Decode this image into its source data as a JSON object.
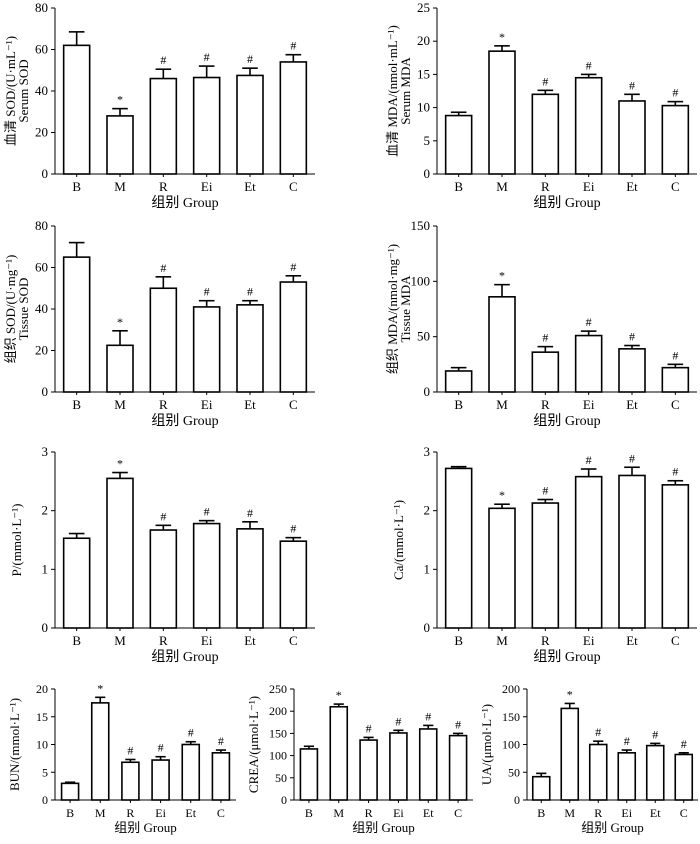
{
  "figure": {
    "categories": [
      "B",
      "M",
      "R",
      "Ei",
      "Et",
      "C"
    ],
    "xlabel": "组别 Group",
    "mark_star": "*",
    "mark_hash": "#"
  },
  "chart_data": [
    {
      "type": "bar",
      "id": "serum-sod",
      "ylabel_cn": "血清 SOD/(U·mL⁻¹)",
      "ylabel_en": "Serum SOD",
      "ylim": [
        0,
        80
      ],
      "yticks": [
        0,
        20,
        40,
        60,
        80
      ],
      "values": [
        62,
        28,
        46,
        46.5,
        47.5,
        54
      ],
      "errors": [
        6.5,
        3.5,
        4.5,
        5.5,
        3.5,
        3.5
      ],
      "marks": [
        "",
        "*",
        "#",
        "#",
        "#",
        "#"
      ]
    },
    {
      "type": "bar",
      "id": "serum-mda",
      "ylabel_cn": "血清 MDA/(nmol·mL⁻¹)",
      "ylabel_en": "Serum MDA",
      "ylim": [
        0,
        25
      ],
      "yticks": [
        0,
        5,
        10,
        15,
        20,
        25
      ],
      "values": [
        8.8,
        18.5,
        12,
        14.5,
        11,
        10.3
      ],
      "errors": [
        0.5,
        0.8,
        0.6,
        0.5,
        1,
        0.6
      ],
      "marks": [
        "",
        "*",
        "#",
        "#",
        "#",
        "#"
      ]
    },
    {
      "type": "bar",
      "id": "tissue-sod",
      "ylabel_cn": "组织 SOD/(U·mg⁻¹)",
      "ylabel_en": "Tissue SOD",
      "ylim": [
        0,
        80
      ],
      "yticks": [
        0,
        20,
        40,
        60,
        80
      ],
      "values": [
        65,
        22.5,
        50,
        41,
        42,
        53
      ],
      "errors": [
        7,
        7,
        5.5,
        3,
        2,
        3
      ],
      "marks": [
        "",
        "*",
        "#",
        "#",
        "#",
        "#"
      ]
    },
    {
      "type": "bar",
      "id": "tissue-mda",
      "ylabel_cn": "组织 MDA/(nmol·mg⁻¹)",
      "ylabel_en": "Tissue MDA",
      "ylim": [
        0,
        150
      ],
      "yticks": [
        0,
        50,
        100,
        150
      ],
      "values": [
        19,
        86,
        36,
        51,
        39,
        22
      ],
      "errors": [
        3,
        11,
        5,
        4,
        3,
        3
      ],
      "marks": [
        "",
        "*",
        "#",
        "#",
        "#",
        "#"
      ]
    },
    {
      "type": "bar",
      "id": "phosphorus",
      "ylabel": "P/(mmol·L⁻¹)",
      "ylim": [
        0,
        3
      ],
      "yticks": [
        0,
        1,
        2,
        3
      ],
      "values": [
        1.53,
        2.55,
        1.67,
        1.78,
        1.69,
        1.48
      ],
      "errors": [
        0.08,
        0.1,
        0.08,
        0.05,
        0.12,
        0.06
      ],
      "marks": [
        "",
        "*",
        "#",
        "#",
        "#",
        "#"
      ]
    },
    {
      "type": "bar",
      "id": "calcium",
      "ylabel": "Ca/(mmol·L⁻¹)",
      "ylim": [
        0,
        3
      ],
      "yticks": [
        0,
        1,
        2,
        3
      ],
      "values": [
        2.72,
        2.04,
        2.13,
        2.58,
        2.6,
        2.44
      ],
      "errors": [
        0.03,
        0.07,
        0.06,
        0.13,
        0.14,
        0.07
      ],
      "marks": [
        "",
        "*",
        "#",
        "#",
        "#",
        "#"
      ]
    },
    {
      "type": "bar",
      "id": "bun",
      "ylabel": "BUN/(mmol·L⁻¹)",
      "ylim": [
        0,
        20
      ],
      "yticks": [
        0,
        5,
        10,
        15,
        20
      ],
      "values": [
        3,
        17.5,
        6.8,
        7.2,
        10,
        8.5
      ],
      "errors": [
        0.2,
        1,
        0.5,
        0.6,
        0.5,
        0.5
      ],
      "marks": [
        "",
        "*",
        "#",
        "#",
        "#",
        "#"
      ]
    },
    {
      "type": "bar",
      "id": "crea",
      "ylabel": "CREA/(μmol·L⁻¹)",
      "ylim": [
        0,
        250
      ],
      "yticks": [
        0,
        50,
        100,
        150,
        200,
        250
      ],
      "values": [
        115,
        210,
        135,
        151,
        160,
        145
      ],
      "errors": [
        6,
        6,
        6,
        6,
        8,
        5
      ],
      "marks": [
        "",
        "*",
        "#",
        "#",
        "#",
        "#"
      ]
    },
    {
      "type": "bar",
      "id": "ua",
      "ylabel": "UA/(μmol·L⁻¹)",
      "ylim": [
        0,
        200
      ],
      "yticks": [
        0,
        50,
        100,
        150,
        200
      ],
      "values": [
        42,
        165,
        100,
        85,
        98,
        82
      ],
      "errors": [
        6,
        9,
        6,
        5,
        4,
        3
      ],
      "marks": [
        "",
        "*",
        "#",
        "#",
        "#",
        "#"
      ]
    }
  ]
}
